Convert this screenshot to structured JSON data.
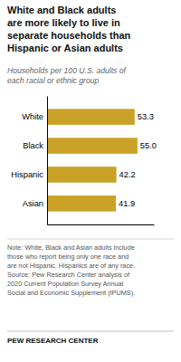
{
  "chart_data": {
    "type": "bar",
    "orientation": "horizontal",
    "title": "White and Black adults\nare more likely to live in\nseparate households than\nHispanic or Asian adults",
    "subtitle": "Households per 100 U.S. adults of\neach racial or ethnic group",
    "categories": [
      "White",
      "Black",
      "Hispanic",
      "Asian"
    ],
    "values": [
      53.3,
      55.0,
      42.2,
      41.9
    ],
    "value_labels": [
      "53.3",
      "55.0",
      "42.2",
      "41.9"
    ],
    "color": "#C9A227",
    "xlim": [
      0,
      65
    ],
    "data_labels": true,
    "tick_labels": "y",
    "grid": false,
    "note": "Note: White, Black and Asian adults include\nthose who report being only one race and\nare not Hispanic. Hispanics are of any race.\nSource: Pew Research Center analysis of\n2020 Current Population Survey Annual\nSocial and Economic Supplement (IPUMS).",
    "footer": "PEW RESEARCH CENTER"
  }
}
